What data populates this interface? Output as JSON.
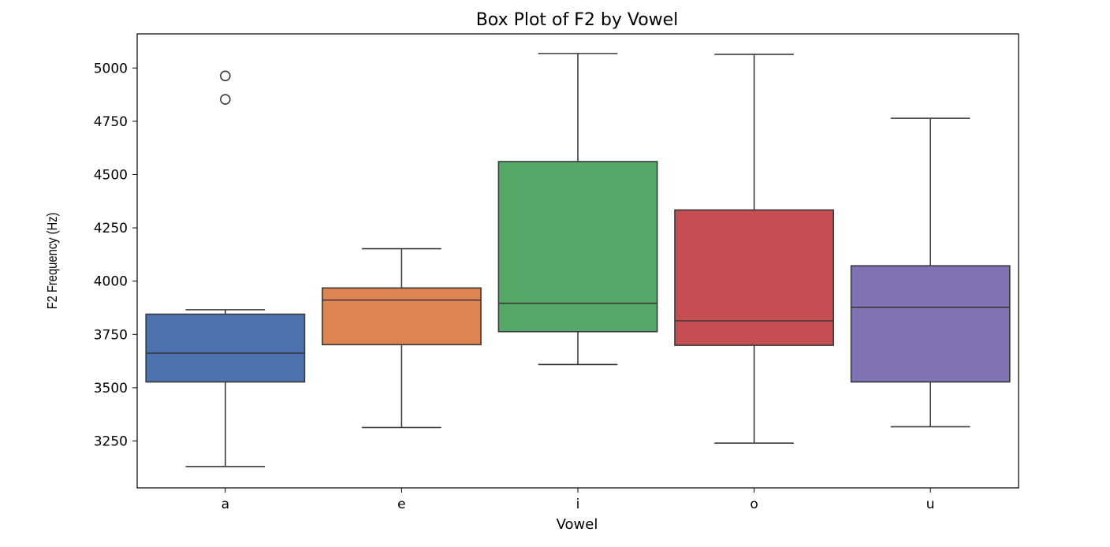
{
  "chart_data": {
    "type": "box",
    "title": "Box Plot of F2 by Vowel",
    "xlabel": "Vowel",
    "ylabel": "F2 Frequency (Hz)",
    "ylim": [
      3030,
      5160
    ],
    "yticks": [
      3250,
      3500,
      3750,
      4000,
      4250,
      4500,
      4750,
      5000
    ],
    "grid": false,
    "categories": [
      "a",
      "e",
      "i",
      "o",
      "u"
    ],
    "boxes": [
      {
        "category": "a",
        "color": "#4C72B0",
        "whisker_low": 3130,
        "q1": 3527,
        "median": 3662,
        "q3": 3845,
        "whisker_high": 3866,
        "outliers": [
          4853,
          4963
        ]
      },
      {
        "category": "e",
        "color": "#DD8452",
        "whisker_low": 3313,
        "q1": 3702,
        "median": 3911,
        "q3": 3968,
        "whisker_high": 4152,
        "outliers": []
      },
      {
        "category": "i",
        "color": "#55A868",
        "whisker_low": 3609,
        "q1": 3763,
        "median": 3896,
        "q3": 4561,
        "whisker_high": 5068,
        "outliers": []
      },
      {
        "category": "o",
        "color": "#C44E52",
        "whisker_low": 3240,
        "q1": 3699,
        "median": 3814,
        "q3": 4334,
        "whisker_high": 5064,
        "outliers": []
      },
      {
        "category": "u",
        "color": "#8172B3",
        "whisker_low": 3317,
        "q1": 3527,
        "median": 3877,
        "q3": 4072,
        "whisker_high": 4764,
        "outliers": []
      }
    ]
  }
}
